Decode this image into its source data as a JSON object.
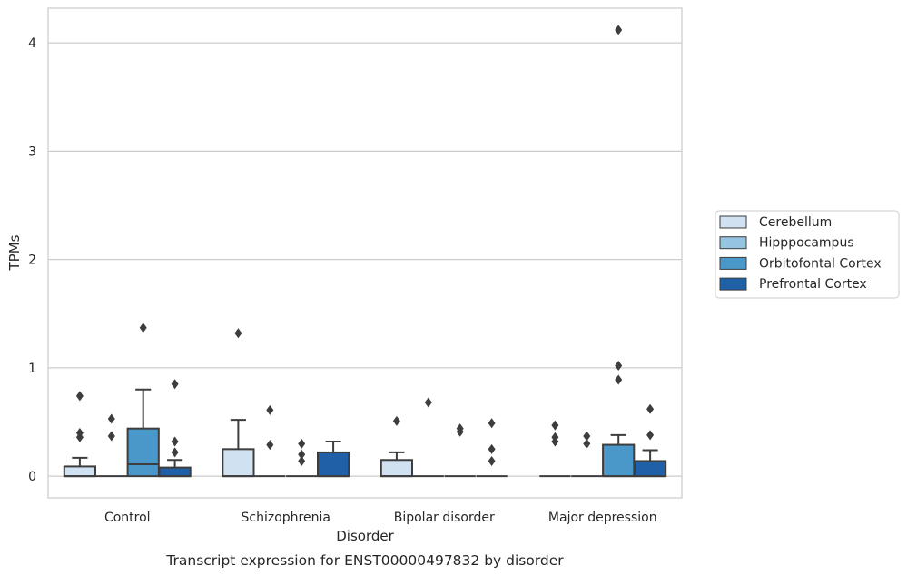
{
  "chart_data": {
    "type": "box",
    "xlabel": "Disorder",
    "ylabel": "TPMs",
    "caption": "Transcript expression for ENST00000497832 by disorder",
    "ylim": [
      -0.2,
      4.32
    ],
    "yticks": [
      0,
      1,
      2,
      3,
      4
    ],
    "grid": "horizontal",
    "legend_position": "right",
    "categories": [
      "Control",
      "Schizophrenia",
      "Bipolar disorder",
      "Major depression"
    ],
    "series": [
      {
        "name": "Cerebellum",
        "color": "#d0e1f2",
        "boxes": [
          {
            "q1": 0,
            "median": 0,
            "q3": 0.09,
            "whisker_low": 0,
            "whisker_high": 0.17,
            "outliers": [
              0.74,
              0.4,
              0.36
            ]
          },
          {
            "q1": 0,
            "median": 0,
            "q3": 0.25,
            "whisker_low": 0,
            "whisker_high": 0.52,
            "outliers": [
              1.32
            ]
          },
          {
            "q1": 0,
            "median": 0,
            "q3": 0.15,
            "whisker_low": 0,
            "whisker_high": 0.22,
            "outliers": [
              0.51
            ]
          },
          {
            "q1": 0,
            "median": 0,
            "q3": 0,
            "whisker_low": 0,
            "whisker_high": 0,
            "outliers": [
              0.47,
              0.36,
              0.32
            ]
          }
        ]
      },
      {
        "name": "Hipppocampus",
        "color": "#94c4df",
        "boxes": [
          {
            "q1": 0,
            "median": 0,
            "q3": 0,
            "whisker_low": 0,
            "whisker_high": 0,
            "outliers": [
              0.53,
              0.37
            ]
          },
          {
            "q1": 0,
            "median": 0,
            "q3": 0,
            "whisker_low": 0,
            "whisker_high": 0,
            "outliers": [
              0.61,
              0.29
            ]
          },
          {
            "q1": 0,
            "median": 0,
            "q3": 0,
            "whisker_low": 0,
            "whisker_high": 0,
            "outliers": [
              0.68
            ]
          },
          {
            "q1": 0,
            "median": 0,
            "q3": 0,
            "whisker_low": 0,
            "whisker_high": 0,
            "outliers": [
              0.37,
              0.3
            ]
          }
        ]
      },
      {
        "name": "Orbitofontal Cortex",
        "color": "#4a98c9",
        "boxes": [
          {
            "q1": 0,
            "median": 0.11,
            "q3": 0.44,
            "whisker_low": 0,
            "whisker_high": 0.8,
            "outliers": [
              1.37
            ]
          },
          {
            "q1": 0,
            "median": 0,
            "q3": 0,
            "whisker_low": 0,
            "whisker_high": 0,
            "outliers": [
              0.3,
              0.2,
              0.14
            ]
          },
          {
            "q1": 0,
            "median": 0,
            "q3": 0,
            "whisker_low": 0,
            "whisker_high": 0,
            "outliers": [
              0.44,
              0.41
            ]
          },
          {
            "q1": 0,
            "median": 0,
            "q3": 0.29,
            "whisker_low": 0,
            "whisker_high": 0.38,
            "outliers": [
              4.12,
              1.02,
              0.89
            ]
          }
        ]
      },
      {
        "name": "Prefrontal Cortex",
        "color": "#2060a7",
        "boxes": [
          {
            "q1": 0,
            "median": 0,
            "q3": 0.08,
            "whisker_low": 0,
            "whisker_high": 0.15,
            "outliers": [
              0.85,
              0.32,
              0.22
            ]
          },
          {
            "q1": 0,
            "median": 0,
            "q3": 0.22,
            "whisker_low": 0,
            "whisker_high": 0.32,
            "outliers": []
          },
          {
            "q1": 0,
            "median": 0,
            "q3": 0,
            "whisker_low": 0,
            "whisker_high": 0,
            "outliers": [
              0.49,
              0.25,
              0.14
            ]
          },
          {
            "q1": 0,
            "median": 0,
            "q3": 0.14,
            "whisker_low": 0,
            "whisker_high": 0.24,
            "outliers": [
              0.62,
              0.38
            ]
          }
        ]
      }
    ]
  }
}
